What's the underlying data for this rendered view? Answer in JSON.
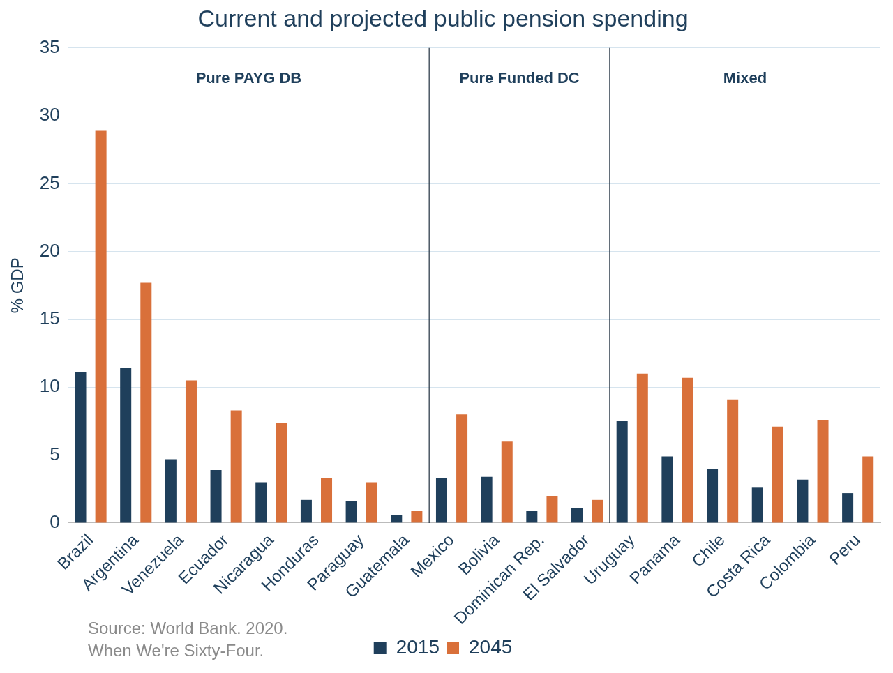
{
  "chart_data": {
    "type": "bar",
    "title": "Current and projected public pension spending",
    "ylabel": "% GDP",
    "categories": [
      "Brazil",
      "Argentina",
      "Venezuela",
      "Ecuador",
      "Nicaragua",
      "Honduras",
      "Paraguay",
      "Guatemala",
      "Mexico",
      "Bolivia",
      "Dominican Rep.",
      "El Salvador",
      "Uruguay",
      "Panama",
      "Chile",
      "Costa Rica",
      "Colombia",
      "Peru"
    ],
    "series": [
      {
        "name": "2015",
        "color": "#1f3f5b",
        "values": [
          11.1,
          11.4,
          4.7,
          3.9,
          3.0,
          1.7,
          1.6,
          0.6,
          3.3,
          3.4,
          0.9,
          1.1,
          7.5,
          4.9,
          4.0,
          2.6,
          3.2,
          2.2
        ]
      },
      {
        "name": "2045",
        "color": "#d9703a",
        "values": [
          28.9,
          17.7,
          10.5,
          8.3,
          7.4,
          3.3,
          3.0,
          0.9,
          8.0,
          6.0,
          2.0,
          1.7,
          11.0,
          10.7,
          9.1,
          7.1,
          7.6,
          4.9
        ]
      }
    ],
    "ylim": [
      0,
      35
    ],
    "yticks": [
      0,
      5,
      10,
      15,
      20,
      25,
      30,
      35
    ],
    "grid": "y",
    "legend": "bottom",
    "annotations": [
      "Pure PAYG DB",
      "Pure Funded DC",
      "Mixed",
      "Source: World Bank. 2020. When We're Sixty-Four."
    ]
  }
}
